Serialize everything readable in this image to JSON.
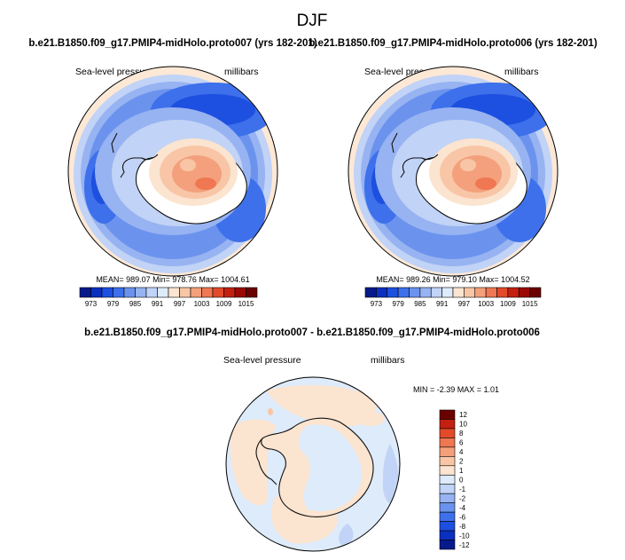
{
  "page": {
    "title": "DJF"
  },
  "colors": {
    "land": "#f7f7f7",
    "coast": "#111111",
    "palette": [
      "#061a8c",
      "#0b2fbf",
      "#1d4fe0",
      "#3d70ea",
      "#6b93ee",
      "#97b3f1",
      "#c1d3f6",
      "#ddebfb",
      "#fbe4d0",
      "#f8c6a6",
      "#f4a07c",
      "#ef7752",
      "#e24a2a",
      "#c32010",
      "#9a0a05",
      "#6b0000"
    ],
    "diff_palette": [
      "#061a8c",
      "#0b2fbf",
      "#1d4fe0",
      "#3d70ea",
      "#6b93ee",
      "#97b3f1",
      "#c1d3f6",
      "#ddebfb",
      "#fbe4d0",
      "#f8c6a6",
      "#f4a07c",
      "#ef7752",
      "#e24a2a",
      "#c32010",
      "#6b0000"
    ]
  },
  "panels": {
    "left": {
      "case": "b.e21.B1850.f09_g17.PMIP4-midHolo.proto007 (yrs 182-201)",
      "variable": "Sea-level pressure",
      "units": "millibars",
      "stats": "MEAN= 989.07  Min= 978.76  Max= 1004.61"
    },
    "right": {
      "case": "b.e21.B1850.f09_g17.PMIP4-midHolo.proto006 (yrs 182-201)",
      "variable": "Sea-level pressure",
      "units": "millibars",
      "stats": "MEAN= 989.26  Min= 979.10  Max= 1004.52"
    },
    "diff": {
      "title": "b.e21.B1850.f09_g17.PMIP4-midHolo.proto007 - b.e21.B1850.f09_g17.PMIP4-midHolo.proto006",
      "variable": "Sea-level pressure",
      "units": "millibars",
      "stats": "MIN =  -2.39 MAX =  1.01"
    }
  },
  "chart_data": [
    {
      "type": "heatmap",
      "projection": "polar stereographic (South Pole)",
      "title": "b.e21.B1850.f09_g17.PMIP4-midHolo.proto007 (yrs 182-201)",
      "variable": "Sea-level pressure",
      "units": "millibars",
      "mean": 989.07,
      "min": 978.76,
      "max": 1004.61,
      "colorbar": {
        "orientation": "horizontal",
        "tick_labels": [
          "973",
          "979",
          "985",
          "991",
          "997",
          "1003",
          "1009",
          "1015"
        ],
        "levels": [
          973,
          976,
          979,
          982,
          985,
          988,
          991,
          994,
          997,
          1000,
          1003,
          1006,
          1009,
          1012,
          1015
        ]
      }
    },
    {
      "type": "heatmap",
      "projection": "polar stereographic (South Pole)",
      "title": "b.e21.B1850.f09_g17.PMIP4-midHolo.proto006 (yrs 182-201)",
      "variable": "Sea-level pressure",
      "units": "millibars",
      "mean": 989.26,
      "min": 979.1,
      "max": 1004.52,
      "colorbar": {
        "orientation": "horizontal",
        "tick_labels": [
          "973",
          "979",
          "985",
          "991",
          "997",
          "1003",
          "1009",
          "1015"
        ],
        "levels": [
          973,
          976,
          979,
          982,
          985,
          988,
          991,
          994,
          997,
          1000,
          1003,
          1006,
          1009,
          1012,
          1015
        ]
      }
    },
    {
      "type": "heatmap",
      "projection": "polar stereographic (South Pole)",
      "title": "b.e21.B1850.f09_g17.PMIP4-midHolo.proto007 - b.e21.B1850.f09_g17.PMIP4-midHolo.proto006",
      "variable": "Sea-level pressure",
      "units": "millibars",
      "min": -2.39,
      "max": 1.01,
      "colorbar": {
        "orientation": "vertical",
        "tick_labels": [
          "12",
          "10",
          "8",
          "6",
          "4",
          "2",
          "1",
          "0",
          "-1",
          "-2",
          "-4",
          "-6",
          "-8",
          "-10",
          "-12"
        ],
        "levels": [
          12,
          10,
          8,
          6,
          4,
          2,
          1,
          0,
          -1,
          -2,
          -4,
          -6,
          -8,
          -10,
          -12
        ]
      }
    }
  ]
}
